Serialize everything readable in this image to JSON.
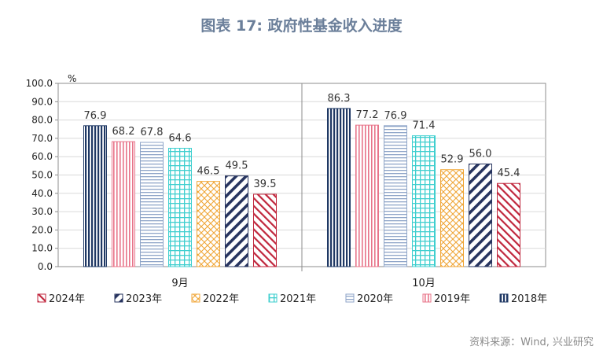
{
  "title": "图表 17: 政府性基金收入进度",
  "source": "资料来源：Wind, 兴业研究",
  "chart_data": {
    "type": "bar",
    "unit": "%",
    "categories": [
      "9月",
      "10月"
    ],
    "ylim": [
      0,
      100
    ],
    "yticks": [
      "100.0",
      "90.0",
      "80.0",
      "70.0",
      "60.0",
      "50.0",
      "40.0",
      "30.0",
      "20.0",
      "10.0",
      "0.0"
    ],
    "grid": true,
    "legend_position": "bottom",
    "bar_order": [
      "2018年",
      "2019年",
      "2020年",
      "2021年",
      "2022年",
      "2023年",
      "2024年"
    ],
    "series": [
      {
        "name": "2018年",
        "values": [
          76.9,
          86.3
        ],
        "labels": [
          "76.9",
          "86.3"
        ],
        "color": "#1f3864",
        "pattern": "vertical-dark"
      },
      {
        "name": "2019年",
        "values": [
          68.2,
          77.2
        ],
        "labels": [
          "68.2",
          "77.2"
        ],
        "color": "#e8748a",
        "pattern": "vertical-pink"
      },
      {
        "name": "2020年",
        "values": [
          67.8,
          76.9
        ],
        "labels": [
          "67.8",
          "76.9"
        ],
        "color": "#8fa5c8",
        "pattern": "horizontal"
      },
      {
        "name": "2021年",
        "values": [
          64.6,
          71.4
        ],
        "labels": [
          "64.6",
          "71.4"
        ],
        "color": "#3fcfcf",
        "pattern": "grid"
      },
      {
        "name": "2022年",
        "values": [
          46.5,
          52.9
        ],
        "labels": [
          "46.5",
          "52.9"
        ],
        "color": "#f0a637",
        "pattern": "diamond"
      },
      {
        "name": "2023年",
        "values": [
          49.5,
          56.0
        ],
        "labels": [
          "49.5",
          "56.0"
        ],
        "color": "#27345f",
        "pattern": "diagonal-wide"
      },
      {
        "name": "2024年",
        "values": [
          39.5,
          45.4
        ],
        "labels": [
          "39.5",
          "45.4"
        ],
        "color": "#c0263c",
        "pattern": "diagonal-narrow"
      }
    ],
    "legend_order": [
      "2024年",
      "2023年",
      "2022年",
      "2021年",
      "2020年",
      "2019年",
      "2018年"
    ]
  }
}
